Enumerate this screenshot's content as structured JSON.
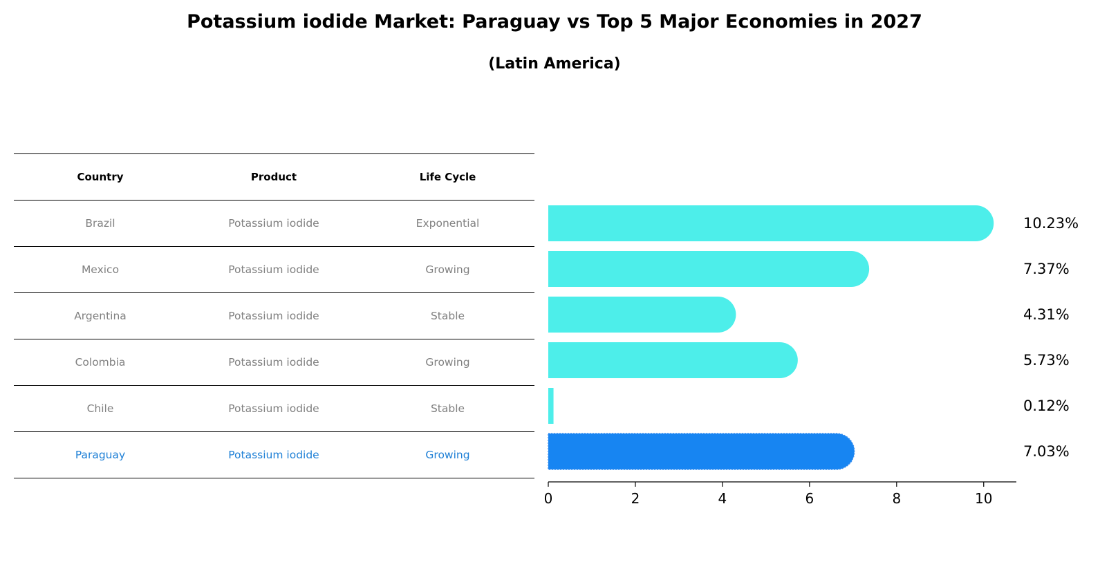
{
  "title": "Potassium iodide Market: Paraguay vs Top 5 Major Economies in 2027",
  "subtitle": "(Latin America)",
  "table": {
    "headers": [
      "Country",
      "Product",
      "Life Cycle"
    ],
    "rows": [
      {
        "country": "Brazil",
        "product": "Potassium iodide",
        "life_cycle": "Exponential"
      },
      {
        "country": "Mexico",
        "product": "Potassium iodide",
        "life_cycle": "Growing"
      },
      {
        "country": "Argentina",
        "product": "Potassium iodide",
        "life_cycle": "Stable"
      },
      {
        "country": "Colombia",
        "product": "Potassium iodide",
        "life_cycle": "Growing"
      },
      {
        "country": "Chile",
        "product": "Potassium iodide",
        "life_cycle": "Stable"
      },
      {
        "country": "Paraguay",
        "product": "Potassium iodide",
        "life_cycle": "Growing"
      }
    ]
  },
  "colors": {
    "bar": "#4deeea",
    "highlight_bar": "#1785f2",
    "highlight_text": "#1f80d6",
    "row_text": "#808080"
  },
  "chart_data": {
    "type": "bar",
    "orientation": "horizontal",
    "categories": [
      "Brazil",
      "Mexico",
      "Argentina",
      "Colombia",
      "Chile",
      "Paraguay"
    ],
    "values": [
      10.23,
      7.37,
      4.31,
      5.73,
      0.12,
      7.03
    ],
    "value_labels": [
      "10.23%",
      "7.37%",
      "4.31%",
      "5.73%",
      "0.12%",
      "7.03%"
    ],
    "highlight_category": "Paraguay",
    "xlim": [
      0,
      10.75
    ],
    "xticks": [
      0,
      2,
      4,
      6,
      8,
      10
    ],
    "xlabel": "",
    "ylabel": "",
    "grid": false
  }
}
